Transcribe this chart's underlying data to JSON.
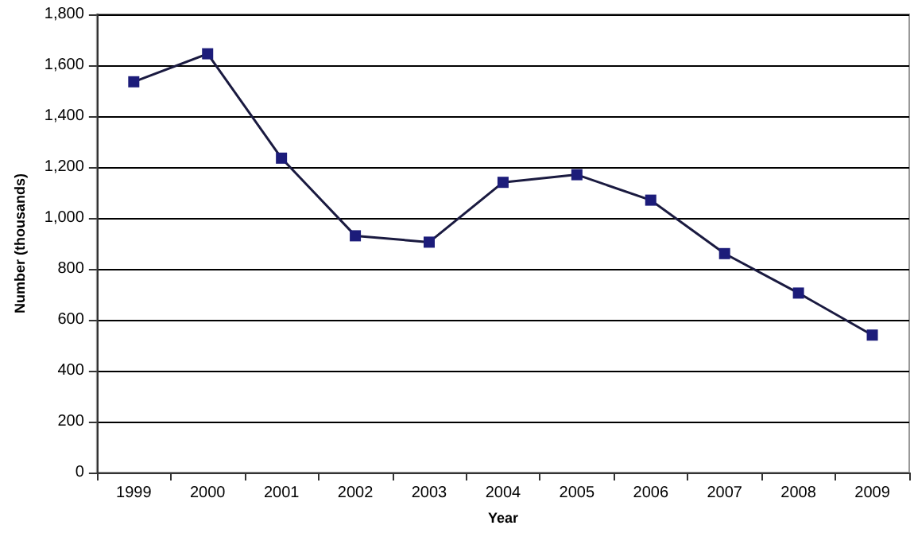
{
  "chart_data": {
    "type": "line",
    "xlabel": "Year",
    "ylabel": "Number (thousands)",
    "categories": [
      "1999",
      "2000",
      "2001",
      "2002",
      "2003",
      "2004",
      "2005",
      "2006",
      "2007",
      "2008",
      "2009"
    ],
    "series": [
      {
        "color": "#1c1c7a",
        "values": [
          1535,
          1645,
          1235,
          930,
          905,
          1140,
          1170,
          1070,
          860,
          705,
          540
        ]
      }
    ],
    "ylim": [
      0,
      1800
    ],
    "yticks": [
      0,
      200,
      400,
      600,
      800,
      {
        "value": 1000,
        "label": "1,000"
      },
      {
        "value": 1200,
        "label": "1,200"
      },
      {
        "value": 1400,
        "label": "1,400"
      },
      {
        "value": 1600,
        "label": "1,600"
      },
      {
        "value": 1800,
        "label": "1,800"
      }
    ],
    "grid": "y",
    "marker": "square",
    "line_style": "solid"
  }
}
